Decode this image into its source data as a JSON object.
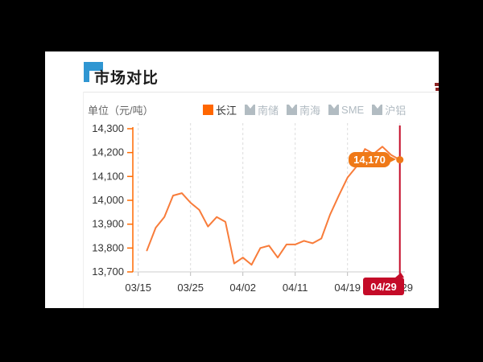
{
  "page": {
    "background": "#000000"
  },
  "header": {
    "title": "市场对比",
    "accent_color": "#2f96d2"
  },
  "chart_data": {
    "type": "line",
    "title": "市场对比",
    "unit_label": "单位（元/吨）",
    "legend_position": "top",
    "grid": "vertical-dashed",
    "legend": [
      {
        "label": "长江",
        "active": true,
        "color": "#ff6600"
      },
      {
        "label": "南储",
        "active": false,
        "color": "#b2bcc2"
      },
      {
        "label": "南海",
        "active": false,
        "color": "#b2bcc2"
      },
      {
        "label": "SME",
        "active": false,
        "color": "#b2bcc2"
      },
      {
        "label": "沪铝",
        "active": false,
        "color": "#b2bcc2"
      }
    ],
    "y_axis": {
      "min": 13700,
      "max": 14300,
      "tick_step": 100,
      "tick_labels": [
        "14,300",
        "14,200",
        "14,100",
        "14,000",
        "13,900",
        "13,800",
        "13,700"
      ],
      "axis_color": "#ff6a00",
      "label_color": "#333333"
    },
    "x_axis": {
      "tick_labels": [
        "03/15",
        "03/25",
        "04/02",
        "04/11",
        "04/19",
        "04/29"
      ],
      "categories_per_label": 6,
      "axis_color": "#cccccc",
      "label_color": "#333333"
    },
    "series": [
      {
        "name": "长江",
        "color": "#f87c3a",
        "values": [
          null,
          13790,
          13885,
          13930,
          14020,
          14030,
          13990,
          13960,
          13890,
          13930,
          13910,
          13735,
          13760,
          13730,
          13800,
          13810,
          13760,
          13815,
          13815,
          13830,
          13820,
          13840,
          13940,
          14020,
          14095,
          14140,
          14215,
          14195,
          14225,
          14190,
          14170
        ]
      }
    ],
    "highlight": {
      "value_label": "14,170",
      "value": 14170,
      "date_label": "04/29",
      "line_color": "#c40b28",
      "badge_color": "#ef7918"
    }
  }
}
